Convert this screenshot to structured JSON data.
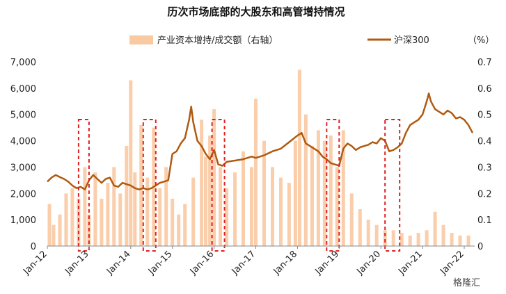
{
  "chart_data": {
    "type": "bar+line",
    "title": "历次市场底部的大股东和高管增持情况",
    "legend": [
      {
        "label": "产业资本增持/成交额（右轴）",
        "kind": "bar",
        "color": "#f9c9a2"
      },
      {
        "label": "沪深300",
        "kind": "line",
        "color": "#b05a10"
      }
    ],
    "right_unit": "（%）",
    "grid": false,
    "legend_position": "top-center",
    "left_axis": {
      "ticks": [
        "0",
        "1,000",
        "2,000",
        "3,000",
        "4,000",
        "5,000",
        "6,000",
        "7,000"
      ],
      "ylim": [
        0,
        7000
      ]
    },
    "right_axis": {
      "ticks": [
        "0",
        "0.1",
        "0.2",
        "0.3",
        "0.4",
        "0.5",
        "0.6",
        "0.7"
      ],
      "ylim": [
        0,
        0.7
      ]
    },
    "x_ticks": [
      "Jan-12",
      "Jan-13",
      "Jan-14",
      "Jan-15",
      "Jan-16",
      "Jan-17",
      "Jan-18",
      "Jan-19",
      "Jan-20",
      "Jan-21",
      "Jan-22"
    ],
    "x_range": [
      2012.0,
      2022.25
    ],
    "series": [
      {
        "name": "沪深300",
        "axis": "left",
        "x": [
          2012.0,
          2012.1,
          2012.2,
          2012.3,
          2012.4,
          2012.5,
          2012.6,
          2012.7,
          2012.8,
          2012.9,
          2013.0,
          2013.1,
          2013.2,
          2013.3,
          2013.4,
          2013.5,
          2013.6,
          2013.7,
          2013.8,
          2013.9,
          2014.0,
          2014.1,
          2014.2,
          2014.3,
          2014.4,
          2014.5,
          2014.6,
          2014.7,
          2014.8,
          2014.9,
          2015.0,
          2015.1,
          2015.2,
          2015.3,
          2015.4,
          2015.45,
          2015.5,
          2015.6,
          2015.7,
          2015.8,
          2015.9,
          2016.0,
          2016.1,
          2016.2,
          2016.3,
          2016.5,
          2016.7,
          2016.9,
          2017.0,
          2017.2,
          2017.4,
          2017.6,
          2017.8,
          2018.0,
          2018.1,
          2018.2,
          2018.3,
          2018.4,
          2018.5,
          2018.6,
          2018.7,
          2018.8,
          2018.9,
          2019.0,
          2019.1,
          2019.2,
          2019.3,
          2019.4,
          2019.5,
          2019.6,
          2019.7,
          2019.8,
          2019.9,
          2020.0,
          2020.1,
          2020.2,
          2020.3,
          2020.4,
          2020.5,
          2020.6,
          2020.7,
          2020.8,
          2020.9,
          2021.0,
          2021.1,
          2021.15,
          2021.2,
          2021.3,
          2021.4,
          2021.5,
          2021.6,
          2021.7,
          2021.8,
          2021.9,
          2022.0,
          2022.1,
          2022.2
        ],
        "y": [
          2450,
          2600,
          2700,
          2620,
          2550,
          2450,
          2300,
          2200,
          2250,
          2150,
          2500,
          2700,
          2550,
          2400,
          2550,
          2600,
          2300,
          2250,
          2400,
          2350,
          2300,
          2200,
          2150,
          2200,
          2150,
          2200,
          2300,
          2400,
          2450,
          2500,
          3500,
          3600,
          3900,
          4100,
          4800,
          5300,
          4700,
          4000,
          3800,
          3500,
          3300,
          3650,
          3100,
          3050,
          3200,
          3250,
          3300,
          3400,
          3350,
          3450,
          3600,
          3700,
          3950,
          4200,
          4300,
          3900,
          3800,
          3700,
          3600,
          3400,
          3300,
          3150,
          3100,
          3050,
          3700,
          3900,
          3800,
          3650,
          3750,
          3800,
          3850,
          3950,
          3900,
          4100,
          4000,
          3600,
          3650,
          3750,
          3900,
          4300,
          4600,
          4700,
          4800,
          5000,
          5500,
          5800,
          5500,
          5200,
          5100,
          5000,
          5150,
          5050,
          4850,
          4900,
          4800,
          4600,
          4300
        ]
      },
      {
        "name": "产业资本增持/成交额（右轴）",
        "axis": "right",
        "x": [
          2012.05,
          2012.15,
          2012.3,
          2012.45,
          2012.6,
          2012.75,
          2012.9,
          2013.0,
          2013.15,
          2013.3,
          2013.45,
          2013.6,
          2013.75,
          2013.9,
          2014.0,
          2014.1,
          2014.25,
          2014.4,
          2014.55,
          2014.7,
          2014.85,
          2015.0,
          2015.15,
          2015.3,
          2015.5,
          2015.7,
          2015.8,
          2015.9,
          2016.0,
          2016.15,
          2016.3,
          2016.5,
          2016.7,
          2016.9,
          2017.0,
          2017.2,
          2017.4,
          2017.6,
          2017.8,
          2017.95,
          2018.05,
          2018.2,
          2018.35,
          2018.5,
          2018.65,
          2018.8,
          2018.95,
          2019.1,
          2019.3,
          2019.5,
          2019.7,
          2019.9,
          2020.1,
          2020.3,
          2020.5,
          2020.7,
          2020.9,
          2021.1,
          2021.3,
          2021.5,
          2021.7,
          2021.9,
          2022.1
        ],
        "y": [
          0.16,
          0.08,
          0.12,
          0.2,
          0.22,
          0.18,
          0.3,
          0.12,
          0.28,
          0.18,
          0.24,
          0.3,
          0.2,
          0.38,
          0.63,
          0.28,
          0.46,
          0.26,
          0.45,
          0.22,
          0.3,
          0.18,
          0.12,
          0.16,
          0.26,
          0.48,
          0.34,
          0.42,
          0.52,
          0.3,
          0.22,
          0.28,
          0.36,
          0.3,
          0.56,
          0.4,
          0.3,
          0.26,
          0.24,
          0.4,
          0.67,
          0.5,
          0.38,
          0.44,
          0.4,
          0.42,
          0.3,
          0.44,
          0.2,
          0.14,
          0.1,
          0.08,
          0.06,
          0.06,
          0.05,
          0.04,
          0.05,
          0.06,
          0.13,
          0.08,
          0.05,
          0.04,
          0.04
        ]
      }
    ],
    "highlight_boxes_x": [
      [
        2012.75,
        2013.0
      ],
      [
        2014.3,
        2014.6
      ],
      [
        2015.95,
        2016.25
      ],
      [
        2018.7,
        2019.0
      ],
      [
        2020.1,
        2020.45
      ]
    ],
    "watermark": "格隆汇"
  }
}
